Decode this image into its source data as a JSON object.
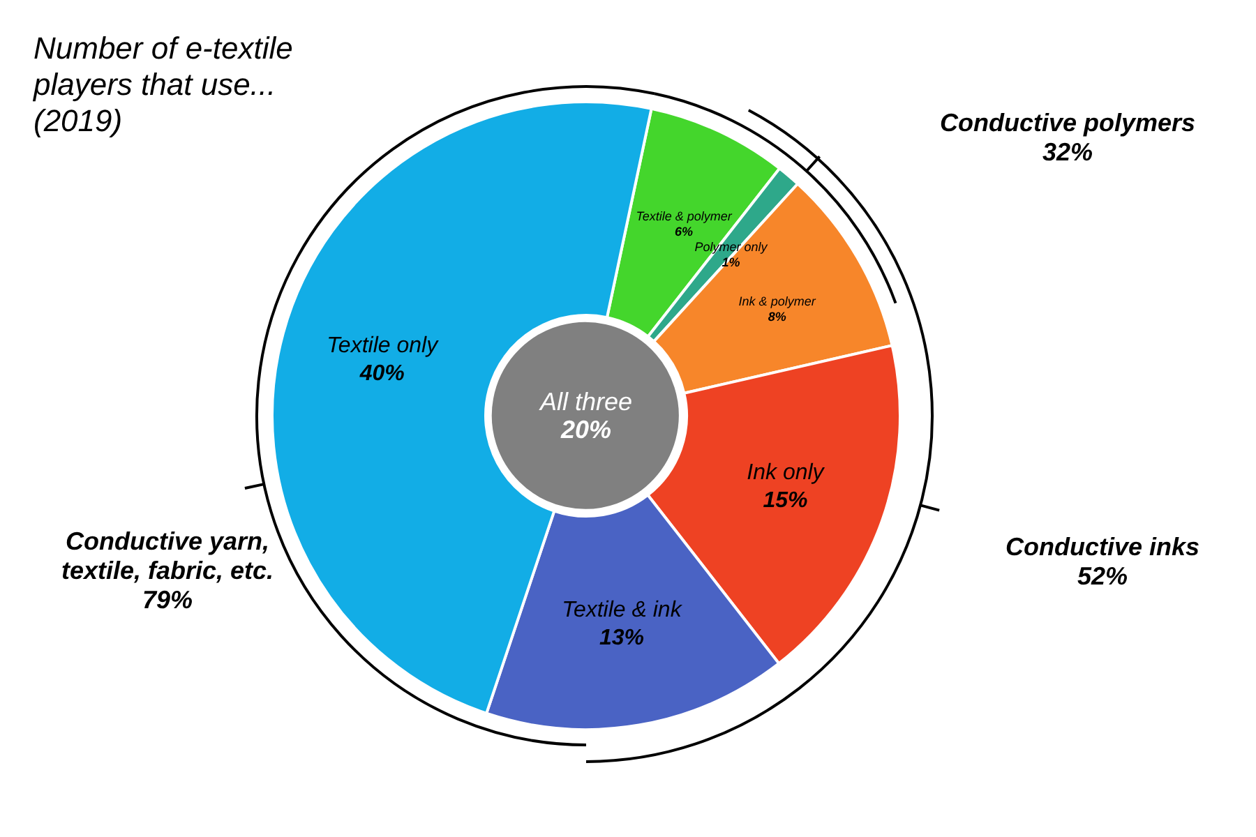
{
  "chart_data": [
    {
      "type": "donut",
      "title": "Number of e-textile\nplayers that use...\n(2019)",
      "categories": [
        "Textile & polymer",
        "Polymer only",
        "Ink & polymer",
        "Ink only",
        "Textile & ink",
        "Textile only"
      ],
      "values": [
        6,
        1,
        8,
        15,
        13,
        40
      ],
      "value_labels": [
        "6%",
        "1%",
        "8%",
        "15%",
        "13%",
        "40%"
      ],
      "colors": [
        "#44d62c",
        "#2ea88a",
        "#f7862a",
        "#ee4223",
        "#4a63c4",
        "#12ade6"
      ],
      "annotations": [
        "Conductive polymers\n32%",
        "Conductive inks\n52%",
        "Conductive yarn,\ntextile, fabric, etc.\n79%"
      ]
    },
    {
      "type": "pie",
      "categories": [
        "All three"
      ],
      "values": [
        20
      ],
      "value_labels": [
        "20%"
      ],
      "colors": [
        "#808080"
      ]
    }
  ]
}
